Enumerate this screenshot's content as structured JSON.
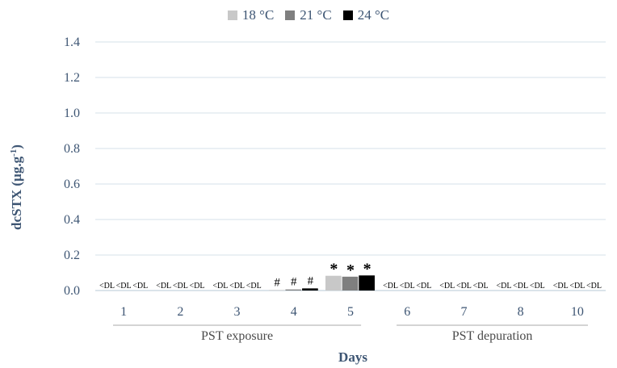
{
  "chart_data": {
    "type": "bar",
    "ylabel": "dcSTX (µg.g",
    "ylabel_sup": "-1",
    "ylabel_close": ")",
    "xlabel": "Days",
    "ylim": [
      0,
      1.4
    ],
    "yticks": [
      "0.0",
      "0.2",
      "0.4",
      "0.6",
      "0.8",
      "1.0",
      "1.2",
      "1.4"
    ],
    "grid": true,
    "legend_position": "top-center",
    "categories": [
      "1",
      "2",
      "3",
      "4",
      "5",
      "6",
      "7",
      "8",
      "10"
    ],
    "groups": [
      {
        "label": "PST exposure",
        "categories": [
          "1",
          "2",
          "3",
          "4",
          "5"
        ]
      },
      {
        "label": "PST depuration",
        "categories": [
          "6",
          "7",
          "8",
          "10"
        ]
      }
    ],
    "series": [
      {
        "name": "18 °C",
        "color": "#c8c8c8",
        "values": [
          0,
          0,
          0,
          0.003,
          0.083,
          0,
          0,
          0,
          0
        ]
      },
      {
        "name": "21 °C",
        "color": "#7f7f7f",
        "values": [
          0,
          0,
          0,
          0.006,
          0.078,
          0,
          0,
          0,
          0
        ]
      },
      {
        "name": "24 °C",
        "color": "#000000",
        "values": [
          0,
          0,
          0,
          0.012,
          0.085,
          0,
          0,
          0,
          0
        ]
      }
    ],
    "bar_labels": [
      [
        "<DL",
        "<DL",
        "<DL",
        "#",
        "*",
        "<DL",
        "<DL",
        "<DL",
        "<DL"
      ],
      [
        "<DL",
        "<DL",
        "<DL",
        "#",
        "*",
        "<DL",
        "<DL",
        "<DL",
        "<DL"
      ],
      [
        "<DL",
        "<DL",
        "<DL",
        "#",
        "*",
        "<DL",
        "<DL",
        "<DL",
        "<DL"
      ]
    ]
  }
}
